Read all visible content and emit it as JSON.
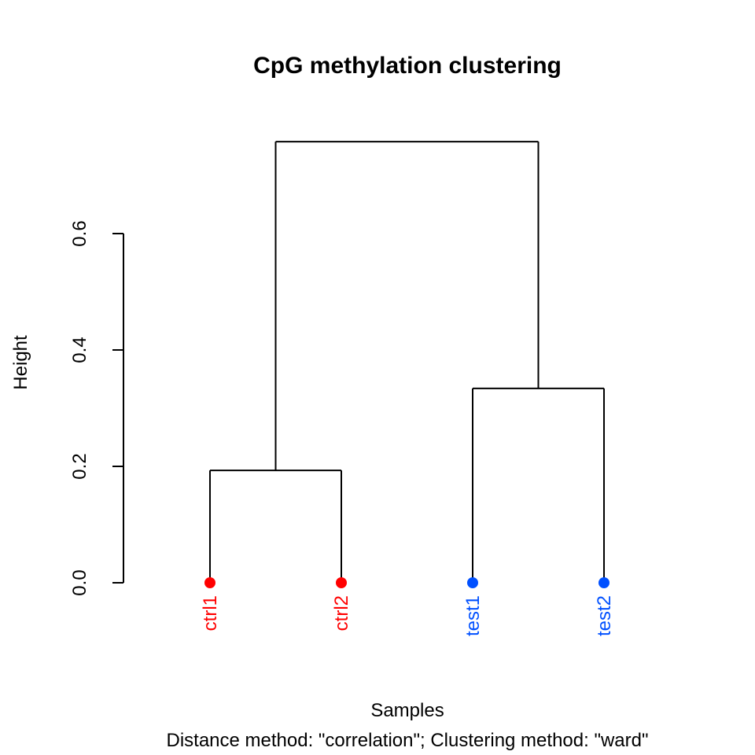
{
  "chart_data": {
    "type": "dendrogram",
    "title": "CpG methylation clustering",
    "xlabel": "Samples",
    "subtitle": "Distance method: \"correlation\"; Clustering method: \"ward\"",
    "ylabel": "Height",
    "ylim": [
      0,
      0.76
    ],
    "yticks": [
      "0.0",
      "0.2",
      "0.4",
      "0.6"
    ],
    "ytick_values": [
      0,
      0.2,
      0.4,
      0.6
    ],
    "grid": false,
    "leaves": [
      {
        "label": "ctrl1",
        "color": "#FF0000"
      },
      {
        "label": "ctrl2",
        "color": "#FF0000"
      },
      {
        "label": "test1",
        "color": "#0050FF"
      },
      {
        "label": "test2",
        "color": "#0050FF"
      }
    ],
    "merges": [
      {
        "left": "ctrl1",
        "right": "ctrl2",
        "height": 0.193
      },
      {
        "left": "test1",
        "right": "test2",
        "height": 0.334
      },
      {
        "left": "ctrl",
        "right": "test",
        "height": 0.758
      }
    ]
  }
}
